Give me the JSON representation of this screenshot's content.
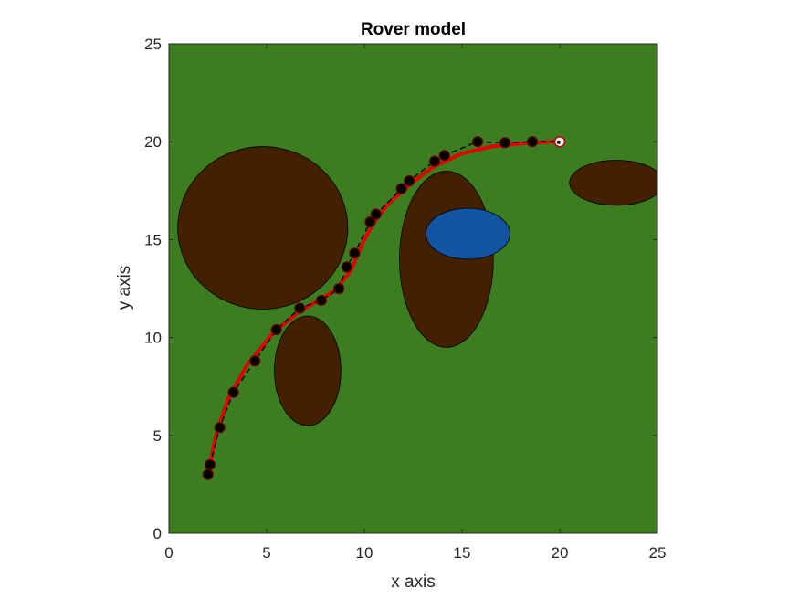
{
  "chart_data": {
    "type": "scatter",
    "title": "Rover model",
    "xlabel": "x axis",
    "ylabel": "y axis",
    "xlim": [
      0,
      25
    ],
    "ylim": [
      0,
      25
    ],
    "x_ticks": [
      "0",
      "5",
      "10",
      "15",
      "20",
      "25"
    ],
    "y_ticks": [
      "0",
      "5",
      "10",
      "15",
      "20",
      "25"
    ],
    "grid": false,
    "background_color": "#3c7d1f",
    "obstacles": [
      {
        "kind": "mud",
        "cx": 4.8,
        "cy": 15.6,
        "rx": 4.35,
        "ry": 4.15,
        "color": "#432000"
      },
      {
        "kind": "mud",
        "cx": 7.1,
        "cy": 8.3,
        "rx": 1.7,
        "ry": 2.8,
        "color": "#432000"
      },
      {
        "kind": "mud",
        "cx": 14.2,
        "cy": 14.0,
        "rx": 2.4,
        "ry": 4.5,
        "color": "#432000"
      },
      {
        "kind": "mud",
        "cx": 22.9,
        "cy": 17.9,
        "rx": 2.4,
        "ry": 1.15,
        "color": "#432000"
      },
      {
        "kind": "water",
        "cx": 15.3,
        "cy": 15.3,
        "rx": 2.15,
        "ry": 1.3,
        "color": "#1155a4"
      }
    ],
    "series": [
      {
        "style": "dashed-black-with-markers",
        "color": "#000000",
        "marker_color": "#000000",
        "x": [
          2.0,
          2.1,
          2.6,
          3.3,
          4.4,
          5.5,
          6.7,
          7.8,
          8.7,
          9.1,
          9.5,
          10.3,
          10.6,
          11.9,
          12.3,
          13.6,
          14.1,
          15.8,
          17.2,
          18.6
        ],
        "y": [
          3.0,
          3.5,
          5.4,
          7.2,
          8.8,
          10.4,
          11.5,
          11.9,
          12.5,
          13.6,
          14.3,
          15.9,
          16.3,
          17.6,
          18.0,
          19.0,
          19.3,
          20.0,
          19.95,
          20.0
        ]
      },
      {
        "style": "solid-red",
        "color": "#e30000",
        "x": [
          2.1,
          2.4,
          3.0,
          4.0,
          5.3,
          6.5,
          7.5,
          8.5,
          9.3,
          10.0,
          10.5,
          11.2,
          12.3,
          13.5,
          15.0,
          16.5,
          18.0,
          19.5,
          20.0
        ],
        "y": [
          3.5,
          5.0,
          6.8,
          8.6,
          10.2,
          11.2,
          11.8,
          12.4,
          13.4,
          15.0,
          15.9,
          16.8,
          17.8,
          18.7,
          19.4,
          19.75,
          19.9,
          20.0,
          20.0
        ]
      }
    ],
    "goal": {
      "x": 20.0,
      "y": 20.0,
      "color": "#ffffff"
    }
  }
}
